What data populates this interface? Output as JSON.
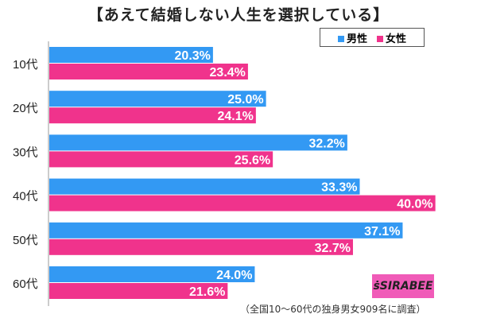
{
  "chart_data": {
    "type": "bar",
    "orientation": "horizontal",
    "title": "【あえて結婚しない人生を選択している】",
    "categories": [
      "10代",
      "20代",
      "30代",
      "40代",
      "50代",
      "60代"
    ],
    "series": [
      {
        "name": "男性",
        "color": "#3399f3",
        "values": [
          20.3,
          25.0,
          32.2,
          33.3,
          37.1,
          24.0
        ]
      },
      {
        "name": "女性",
        "color": "#f0338c",
        "values": [
          23.4,
          24.1,
          25.6,
          40.0,
          32.7,
          21.6
        ]
      }
    ],
    "value_suffix": "%",
    "legend_placement": "top-right",
    "grid": false,
    "note": "（全国10〜60代の独身男女909名に調査）"
  },
  "logo_text": "SIRABEE"
}
